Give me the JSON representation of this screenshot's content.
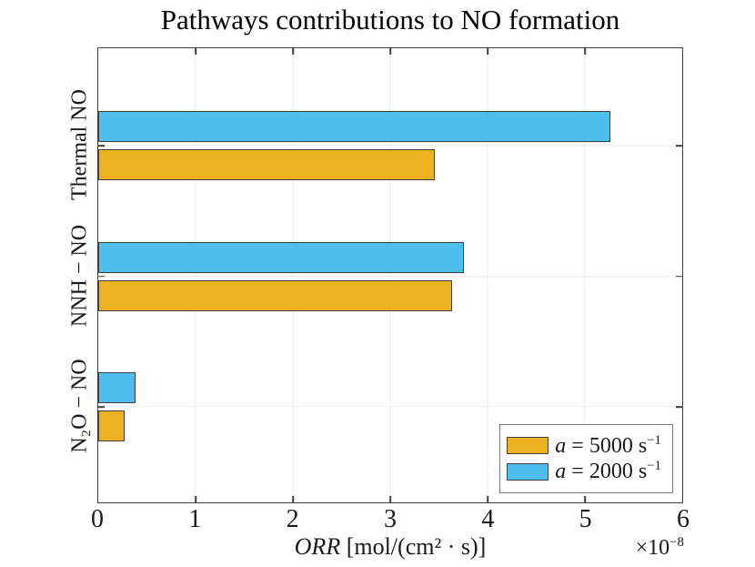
{
  "title": "Pathways contributions to NO formation",
  "chart_data": {
    "type": "bar",
    "orientation": "horizontal",
    "title": "Pathways contributions to NO formation",
    "categories": [
      "Thermal NO",
      "NNH − NO",
      "N₂O − NO"
    ],
    "series": [
      {
        "name": "a = 5000 s⁻¹",
        "label_italic": "a",
        "label_text": " = 5000 s",
        "label_exp": "−1",
        "color": "#EDB120",
        "values": [
          3.46,
          3.64,
          0.27
        ]
      },
      {
        "name": "a = 2000 s⁻¹",
        "label_italic": "a",
        "label_text": " = 2000 s",
        "label_exp": "−1",
        "color": "#4DBEEE",
        "values": [
          5.26,
          3.76,
          0.38
        ]
      }
    ],
    "group_order_top_to_bottom": [
      "a = 2000 s⁻¹",
      "a = 5000 s⁻¹"
    ],
    "xlabel_italic": "ORR",
    "xlabel_rest": " [mol/(cm² · s)]",
    "x_multiplier_base": "×10",
    "x_multiplier_exp": "−8",
    "x_ticks": [
      0,
      1,
      2,
      3,
      4,
      5,
      6
    ],
    "xlim": [
      0,
      6
    ],
    "grid": true,
    "legend_position": "bottom-right",
    "colors": {
      "bar_edge": "#3d3d3d",
      "axis": "#3f3f3f",
      "grid": "#ebebeb",
      "series_orange": "#EDB120",
      "series_blue": "#4DBEEE"
    }
  }
}
